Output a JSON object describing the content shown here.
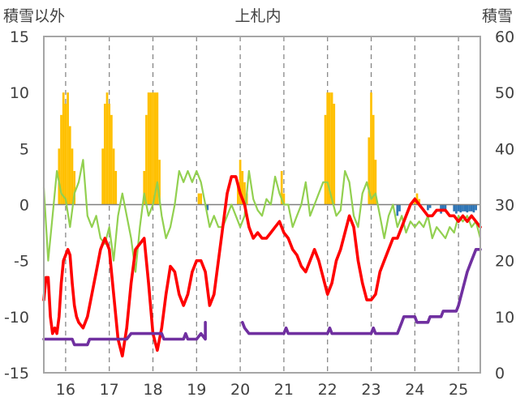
{
  "chart_data": {
    "type": "line",
    "title": "上札内",
    "left_axis_label": "積雪以外",
    "right_axis_label": "積雪",
    "left_ylim": [
      -15,
      15
    ],
    "right_ylim": [
      0,
      60
    ],
    "left_ticks": [
      "15",
      "10",
      "5",
      "0",
      "-5",
      "-10",
      "-15"
    ],
    "right_ticks": [
      "60",
      "50",
      "40",
      "30",
      "20",
      "10",
      "0"
    ],
    "x_ticks": [
      "16",
      "17",
      "18",
      "19",
      "20",
      "21",
      "22",
      "23",
      "24",
      "25"
    ],
    "xlim": [
      15.5,
      25.5
    ],
    "grid": "vertical dashed at day boundaries",
    "series": [
      {
        "name": "",
        "kind": "bar",
        "axis": "left",
        "color": "#ffc000",
        "x": [
          15.85,
          15.9,
          15.95,
          16.0,
          16.05,
          16.1,
          16.15,
          16.2,
          16.85,
          16.9,
          16.95,
          17.0,
          17.05,
          17.1,
          17.15,
          17.8,
          17.85,
          17.9,
          17.95,
          18.0,
          18.05,
          18.1,
          18.15,
          19.05,
          19.1,
          19.95,
          20.0,
          20.05,
          20.1,
          20.15,
          20.95,
          21.0,
          21.95,
          22.0,
          22.05,
          22.1,
          22.15,
          22.95,
          23.0,
          23.05,
          23.1,
          24.0,
          24.05,
          24.1
        ],
        "values": [
          5,
          8,
          10,
          9,
          10,
          7,
          5,
          3,
          5,
          9,
          10,
          9,
          8,
          5,
          3,
          3,
          8,
          10,
          10,
          10,
          10,
          10,
          4,
          1,
          1,
          2,
          4,
          3,
          2,
          1,
          3,
          1,
          8,
          10,
          10,
          10,
          9,
          6,
          10,
          8,
          4,
          0.5,
          1,
          0.5
        ]
      },
      {
        "name": "",
        "kind": "bar",
        "axis": "left",
        "color": "#2e75b6",
        "x": [
          19.25,
          23.6,
          23.65,
          24.3,
          24.35,
          24.6,
          24.65,
          24.7,
          24.9,
          24.95,
          25.0,
          25.05,
          25.1,
          25.15,
          25.2,
          25.25,
          25.3,
          25.35,
          25.4
        ],
        "values": [
          -0.5,
          -1,
          -0.6,
          -0.5,
          -0.3,
          -0.8,
          -0.5,
          -0.4,
          -0.6,
          -0.8,
          -0.6,
          -0.7,
          -0.6,
          -0.6,
          -0.7,
          -0.6,
          -0.6,
          -0.7,
          -0.5
        ]
      },
      {
        "name": "",
        "kind": "line",
        "axis": "left",
        "color": "#92d050",
        "x": [
          15.5,
          15.6,
          15.7,
          15.8,
          15.9,
          16.0,
          16.1,
          16.2,
          16.3,
          16.4,
          16.5,
          16.6,
          16.7,
          16.8,
          16.9,
          17.0,
          17.1,
          17.2,
          17.3,
          17.4,
          17.5,
          17.6,
          17.7,
          17.8,
          17.9,
          18.0,
          18.1,
          18.2,
          18.3,
          18.4,
          18.5,
          18.6,
          18.7,
          18.8,
          18.9,
          19.0,
          19.1,
          19.2,
          19.3,
          19.4,
          19.5,
          19.6,
          19.7,
          19.8,
          19.9,
          20.0,
          20.1,
          20.2,
          20.3,
          20.4,
          20.5,
          20.6,
          20.7,
          20.8,
          20.9,
          21.0,
          21.1,
          21.2,
          21.3,
          21.4,
          21.5,
          21.6,
          21.7,
          21.8,
          21.9,
          22.0,
          22.1,
          22.2,
          22.3,
          22.4,
          22.5,
          22.6,
          22.7,
          22.8,
          22.9,
          23.0,
          23.1,
          23.2,
          23.3,
          23.4,
          23.5,
          23.6,
          23.7,
          23.8,
          23.9,
          24.0,
          24.1,
          24.2,
          24.3,
          24.4,
          24.5,
          24.6,
          24.7,
          24.8,
          24.9,
          25.0,
          25.1,
          25.2,
          25.3,
          25.4,
          25.5
        ],
        "values": [
          1.5,
          -5,
          -1,
          3,
          1,
          0.5,
          -2,
          1,
          2,
          4,
          -1,
          -2,
          -1,
          -3,
          -3.5,
          -2,
          -5,
          -1,
          1,
          -1,
          -3,
          -6,
          -2,
          1,
          -1,
          0,
          2,
          -1,
          -3,
          -2,
          0,
          3,
          2,
          3,
          2,
          3,
          2,
          0,
          -2,
          -1,
          -2,
          -2,
          -1,
          0,
          -1,
          -2,
          -1,
          3,
          0.5,
          -0.5,
          -1,
          0.5,
          0,
          2.5,
          1,
          0,
          0,
          -2,
          -1,
          0,
          2,
          -1,
          0,
          1,
          2,
          2,
          0.5,
          -1,
          -0.5,
          3,
          2,
          -1,
          -2,
          1,
          2,
          0.5,
          1,
          -1,
          -3,
          -1,
          0,
          -2,
          -1,
          -2.5,
          -1.5,
          -2,
          -1.5,
          -2,
          -1,
          -3,
          -2,
          -2.5,
          -3,
          -2,
          -2.5,
          -1,
          -1.5,
          -1,
          -2,
          -1.5,
          -3
        ]
      },
      {
        "name": "",
        "kind": "line",
        "axis": "left",
        "color": "#ff0000",
        "x": [
          15.5,
          15.55,
          15.6,
          15.65,
          15.7,
          15.75,
          15.8,
          15.85,
          15.9,
          15.95,
          16.0,
          16.05,
          16.1,
          16.15,
          16.2,
          16.25,
          16.3,
          16.4,
          16.5,
          16.6,
          16.7,
          16.8,
          16.9,
          17.0,
          17.1,
          17.2,
          17.3,
          17.4,
          17.5,
          17.6,
          17.7,
          17.8,
          17.9,
          18.0,
          18.1,
          18.2,
          18.3,
          18.4,
          18.5,
          18.6,
          18.7,
          18.8,
          18.9,
          19.0,
          19.1,
          19.2,
          19.3,
          19.4,
          19.5,
          19.6,
          19.7,
          19.8,
          19.9,
          20.0,
          20.1,
          20.2,
          20.3,
          20.4,
          20.5,
          20.6,
          20.7,
          20.8,
          20.9,
          21.0,
          21.1,
          21.2,
          21.3,
          21.4,
          21.5,
          21.6,
          21.7,
          21.8,
          21.9,
          22.0,
          22.1,
          22.2,
          22.3,
          22.4,
          22.5,
          22.6,
          22.7,
          22.8,
          22.9,
          23.0,
          23.1,
          23.2,
          23.3,
          23.4,
          23.5,
          23.6,
          23.7,
          23.8,
          23.9,
          24.0,
          24.1,
          24.2,
          24.3,
          24.4,
          24.5,
          24.6,
          24.7,
          24.8,
          24.9,
          25.0,
          25.1,
          25.2,
          25.3,
          25.4,
          25.5
        ],
        "values": [
          -8.5,
          -6.5,
          -6.5,
          -10,
          -11.5,
          -11,
          -11.5,
          -10,
          -7,
          -5,
          -4.5,
          -4,
          -4.5,
          -7,
          -9,
          -10,
          -10.5,
          -11,
          -10,
          -8,
          -6,
          -4,
          -3,
          -4,
          -8,
          -12,
          -13.5,
          -11,
          -7,
          -4,
          -3.5,
          -3,
          -7,
          -11.5,
          -13,
          -11,
          -8,
          -5.5,
          -6,
          -8,
          -9,
          -8,
          -6,
          -5,
          -5,
          -6,
          -9,
          -8,
          -5,
          -2,
          1,
          2.5,
          2.5,
          1,
          0,
          -2,
          -3,
          -2.5,
          -3,
          -3,
          -2.5,
          -2,
          -1.5,
          -2.5,
          -3,
          -4,
          -4.5,
          -5.5,
          -6,
          -5,
          -4,
          -5,
          -6.5,
          -8,
          -7,
          -5,
          -4,
          -2.5,
          -1,
          -2,
          -5,
          -7,
          -8.5,
          -8.5,
          -8,
          -6,
          -5,
          -4,
          -3,
          -3,
          -2,
          -1,
          0,
          0.5,
          0,
          -0.5,
          -1,
          -1,
          -0.5,
          -0.5,
          -0.5,
          -1,
          -1,
          -1.5,
          -1,
          -1.5,
          -1,
          -1.5,
          -2
        ]
      },
      {
        "name": "",
        "kind": "line",
        "axis": "right",
        "color": "#7030a0",
        "x": [
          15.5,
          16.15,
          16.2,
          16.3,
          16.5,
          16.55,
          16.9,
          17.4,
          17.5,
          18.0,
          18.2,
          18.25,
          18.5,
          18.7,
          18.75,
          18.8,
          19.0,
          19.1,
          19.2,
          19.2,
          19.95,
          20.05,
          20.1,
          20.2,
          21.0,
          21.05,
          21.1,
          22.0,
          22.05,
          22.1,
          23.0,
          23.05,
          23.1,
          23.6,
          23.7,
          23.75,
          24.0,
          24.05,
          24.3,
          24.35,
          24.6,
          24.65,
          24.9,
          24.95,
          25.0,
          25.1,
          25.2,
          25.3,
          25.4,
          25.5
        ],
        "values": [
          6,
          6,
          5,
          5,
          5,
          6,
          6,
          6,
          7,
          7,
          7,
          6,
          6,
          6,
          7,
          6,
          6,
          7,
          6,
          9,
          null,
          9,
          8,
          7,
          7,
          8,
          7,
          7,
          8,
          7,
          7,
          8,
          7,
          7,
          9,
          10,
          10,
          9,
          9,
          10,
          10,
          11,
          11,
          11,
          12,
          15,
          18,
          20,
          22,
          22
        ]
      }
    ]
  }
}
